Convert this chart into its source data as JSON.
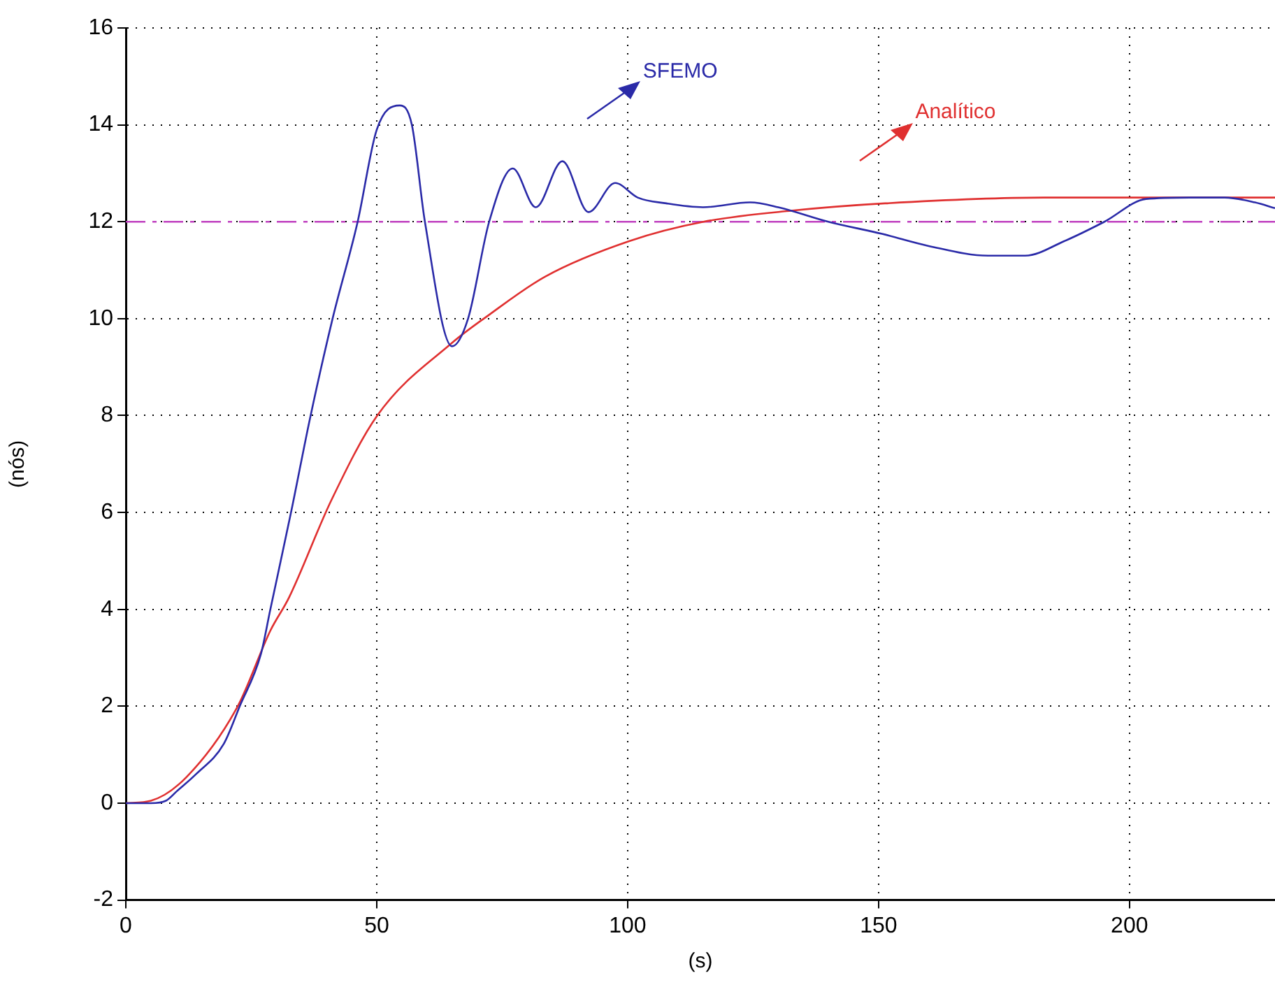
{
  "chart_data": {
    "type": "line",
    "xlabel": "(s)",
    "ylabel": "(nós)",
    "series": [
      {
        "color": "#2a2aa8",
        "x": [
          0,
          5,
          8,
          10.2,
          14,
          19.5,
          22.7,
          26.9,
          28.8,
          33,
          36.7,
          41.2,
          46.2,
          50,
          54.6,
          57,
          59.6,
          65,
          68.2,
          72.4,
          77.1,
          81.7,
          87,
          92.2,
          97.5,
          102,
          107.7,
          115,
          124.4,
          130,
          140,
          150.7,
          160,
          171.8,
          179.2,
          187,
          195,
          203.3,
          212,
          219,
          225,
          229
        ],
        "values": [
          0,
          0,
          0.05,
          0.25,
          0.6,
          1.22,
          2,
          3.07,
          4,
          6.04,
          7.94,
          10,
          12,
          13.9,
          14.4,
          14,
          12,
          9.43,
          10,
          12,
          13.1,
          12.3,
          13.25,
          12.2,
          12.8,
          12.5,
          12.38,
          12.3,
          12.4,
          12.3,
          12,
          11.75,
          11.5,
          11.3,
          11.3,
          11.6,
          12,
          12.47,
          12.5,
          12.5,
          12.4,
          12.28
        ]
      },
      {
        "color": "#e03030",
        "x": [
          0,
          5,
          12.1,
          22.3,
          28.8,
          32.5,
          40.9,
          50.1,
          65,
          72.4,
          83.6,
          100.3,
          115.1,
          132.8,
          151.3,
          182.9,
          229
        ],
        "values": [
          0,
          0.05,
          0.54,
          2,
          3.56,
          4.24,
          6.24,
          8,
          9.5,
          10.08,
          10.87,
          11.6,
          12,
          12.23,
          12.38,
          12.5,
          12.5
        ]
      }
    ],
    "annotations": [
      "SFEMO",
      "Analítico"
    ],
    "ref_lines": [
      {
        "axis": "y",
        "value": 12,
        "color": "#c040c0",
        "line_style": "dashed"
      }
    ],
    "xlim": [
      0,
      229
    ],
    "xticks": [
      0,
      50,
      100,
      150,
      200
    ],
    "ylim": [
      -2,
      16
    ],
    "yticks": [
      -2,
      0,
      2,
      4,
      6,
      8,
      10,
      12,
      14,
      16
    ],
    "grid": true,
    "legend": false,
    "marker": "none",
    "line_style": "solid"
  }
}
